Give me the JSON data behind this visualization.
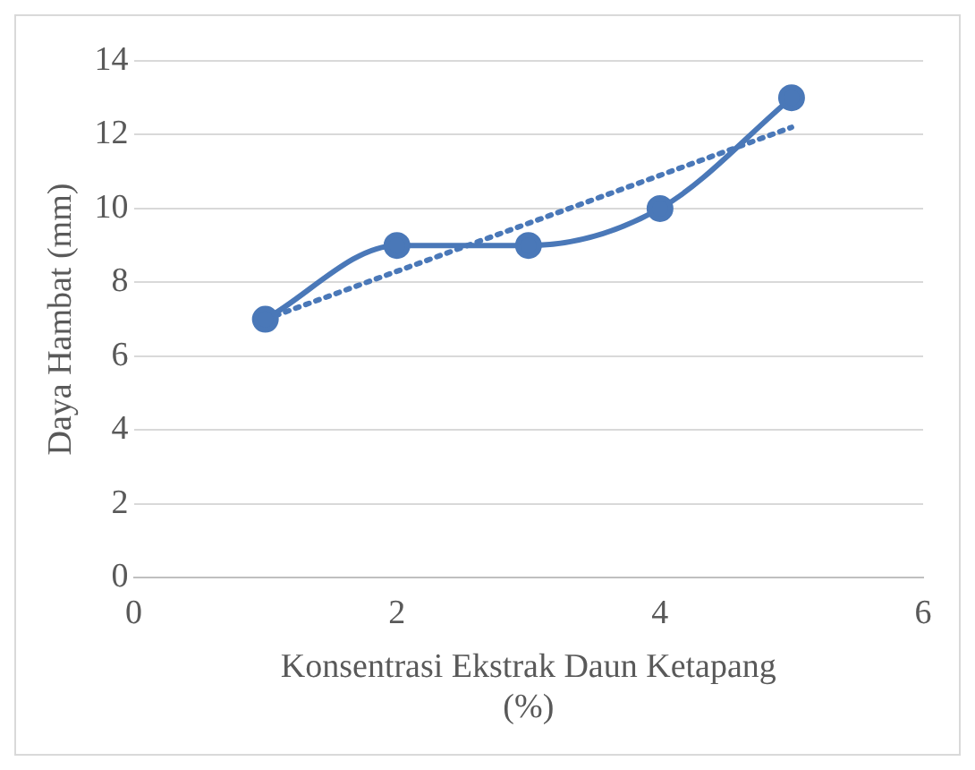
{
  "chart_data": {
    "type": "scatter",
    "xlabel": "Konsentrasi Ekstrak Daun Ketapang (%)",
    "ylabel": "Daya Hambat (mm)",
    "x": [
      1,
      2,
      3,
      4,
      5
    ],
    "series": [
      {
        "type": "line",
        "color": "#4a78b8",
        "values": [
          7,
          9,
          9,
          10,
          13
        ],
        "marker": "circle",
        "line_style": "solid"
      },
      {
        "type": "line",
        "x": [
          1,
          5
        ],
        "color": "#4a78b8",
        "values": [
          7.0,
          12.2
        ],
        "marker": "none",
        "line_style": "dotted"
      }
    ],
    "xlim": [
      0,
      6
    ],
    "xticks": [
      0,
      2,
      4,
      6
    ],
    "ylim": [
      0,
      14
    ],
    "yticks": [
      0,
      2,
      4,
      6,
      8,
      10,
      12,
      14
    ],
    "grid": "y",
    "legend": false
  }
}
